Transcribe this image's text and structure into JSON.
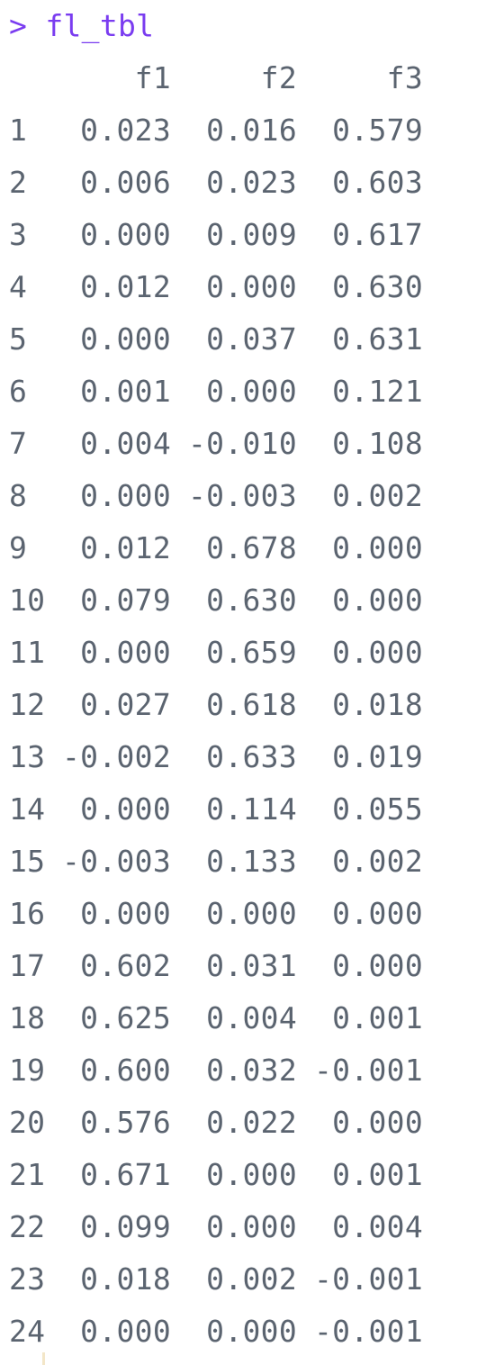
{
  "console": {
    "prompt": ">",
    "command": "fl_tbl",
    "columns": [
      "f1",
      "f2",
      "f3"
    ],
    "rows": [
      {
        "name": "1",
        "values": [
          "0.023",
          "0.016",
          "0.579"
        ]
      },
      {
        "name": "2",
        "values": [
          "0.006",
          "0.023",
          "0.603"
        ]
      },
      {
        "name": "3",
        "values": [
          "0.000",
          "0.009",
          "0.617"
        ]
      },
      {
        "name": "4",
        "values": [
          "0.012",
          "0.000",
          "0.630"
        ]
      },
      {
        "name": "5",
        "values": [
          "0.000",
          "0.037",
          "0.631"
        ]
      },
      {
        "name": "6",
        "values": [
          "0.001",
          "0.000",
          "0.121"
        ]
      },
      {
        "name": "7",
        "values": [
          "0.004",
          "-0.010",
          "0.108"
        ]
      },
      {
        "name": "8",
        "values": [
          "0.000",
          "-0.003",
          "0.002"
        ]
      },
      {
        "name": "9",
        "values": [
          "0.012",
          "0.678",
          "0.000"
        ]
      },
      {
        "name": "10",
        "values": [
          "0.079",
          "0.630",
          "0.000"
        ]
      },
      {
        "name": "11",
        "values": [
          "0.000",
          "0.659",
          "0.000"
        ]
      },
      {
        "name": "12",
        "values": [
          "0.027",
          "0.618",
          "0.018"
        ]
      },
      {
        "name": "13",
        "values": [
          "-0.002",
          "0.633",
          "0.019"
        ]
      },
      {
        "name": "14",
        "values": [
          "0.000",
          "0.114",
          "0.055"
        ]
      },
      {
        "name": "15",
        "values": [
          "-0.003",
          "0.133",
          "0.002"
        ]
      },
      {
        "name": "16",
        "values": [
          "0.000",
          "0.000",
          "0.000"
        ]
      },
      {
        "name": "17",
        "values": [
          "0.602",
          "0.031",
          "0.000"
        ]
      },
      {
        "name": "18",
        "values": [
          "0.625",
          "0.004",
          "0.001"
        ]
      },
      {
        "name": "19",
        "values": [
          "0.600",
          "0.032",
          "-0.001"
        ]
      },
      {
        "name": "20",
        "values": [
          "0.576",
          "0.022",
          "0.000"
        ]
      },
      {
        "name": "21",
        "values": [
          "0.671",
          "0.000",
          "0.001"
        ]
      },
      {
        "name": "22",
        "values": [
          "0.099",
          "0.000",
          "0.004"
        ]
      },
      {
        "name": "23",
        "values": [
          "0.018",
          "0.002",
          "-0.001"
        ]
      },
      {
        "name": "24",
        "values": [
          "0.000",
          "0.000",
          "-0.001"
        ]
      }
    ]
  },
  "colors": {
    "prompt": "#7a3cf0",
    "output_text": "#5b6470",
    "background": "#ffffff"
  }
}
